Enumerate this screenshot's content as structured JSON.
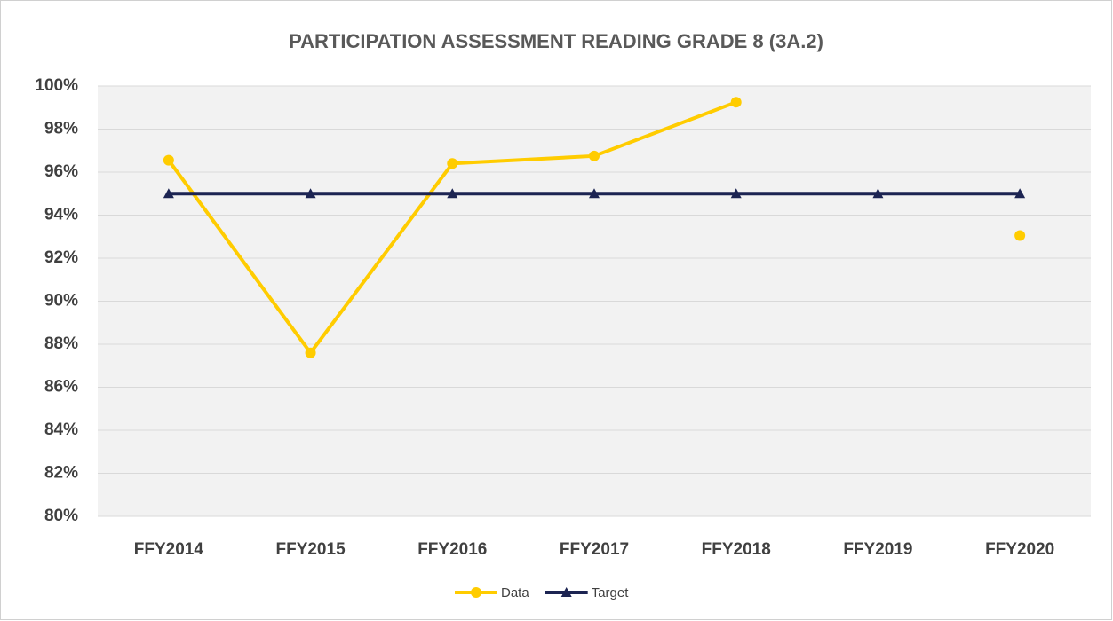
{
  "chart_data": {
    "type": "line",
    "title": "PARTICIPATION ASSESSMENT READING GRADE 8 (3A.2)",
    "categories": [
      "FFY2014",
      "FFY2015",
      "FFY2016",
      "FFY2017",
      "FFY2018",
      "FFY2019",
      "FFY2020"
    ],
    "series": [
      {
        "name": "Data",
        "color": "#ffcc00",
        "marker": "circle",
        "values": [
          96.55,
          87.6,
          96.4,
          96.75,
          99.25,
          null,
          93.05
        ]
      },
      {
        "name": "Target",
        "color": "#1c2452",
        "marker": "triangle",
        "values": [
          95,
          95,
          95,
          95,
          95,
          95,
          95
        ]
      }
    ],
    "ylim": [
      80,
      100
    ],
    "yticks": [
      {
        "value": 80,
        "label": "80%"
      },
      {
        "value": 82,
        "label": "82%"
      },
      {
        "value": 84,
        "label": "84%"
      },
      {
        "value": 86,
        "label": "86%"
      },
      {
        "value": 88,
        "label": "88%"
      },
      {
        "value": 90,
        "label": "90%"
      },
      {
        "value": 92,
        "label": "92%"
      },
      {
        "value": 94,
        "label": "94%"
      },
      {
        "value": 96,
        "label": "96%"
      },
      {
        "value": 98,
        "label": "98%"
      },
      {
        "value": 100,
        "label": "100%"
      }
    ],
    "grid": true,
    "legend": "bottom"
  }
}
